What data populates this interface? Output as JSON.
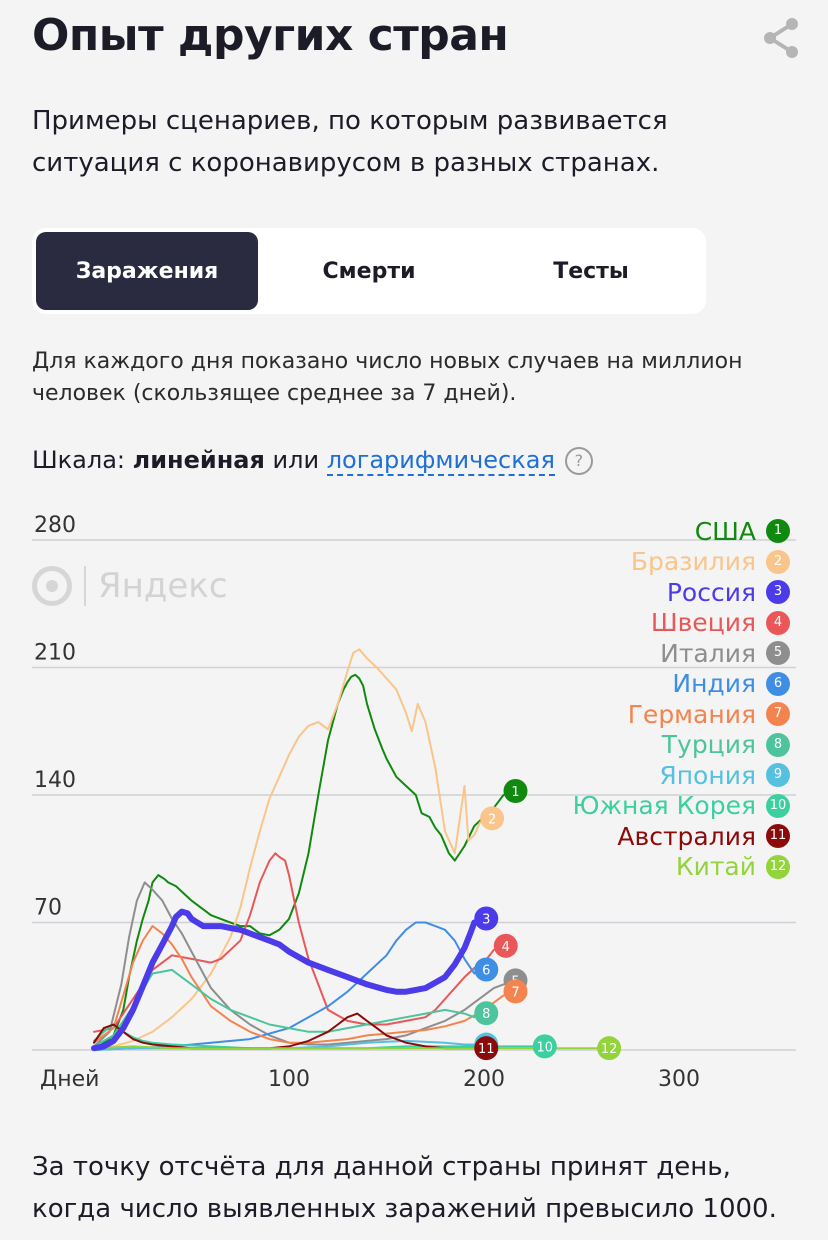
{
  "header": {
    "title": "Опыт других стран",
    "share_icon": "share-icon"
  },
  "subtitle": "Примеры сценариев, по которым развивается ситуация с коронавирусом в разных странах.",
  "tabs": [
    {
      "label": "Заражения",
      "active": true
    },
    {
      "label": "Смерти",
      "active": false
    },
    {
      "label": "Тесты",
      "active": false
    }
  ],
  "description": "Для каждого дня показано число новых случаев на миллион человек (скользящее среднее за 7 дней).",
  "scale": {
    "prefix": "Шкала: ",
    "linear": "линейная",
    "or": " или ",
    "log": "логарифмическая",
    "help": "?"
  },
  "watermark": "Яндекс",
  "footer": "За точку отсчёта для данной страны принят день, когда число выявленных заражений превысило 1000.",
  "chart_data": {
    "type": "line",
    "xlabel": "Дней",
    "x_ticks": [
      "100",
      "200",
      "300"
    ],
    "y_ticks": [
      "70",
      "140",
      "210",
      "280"
    ],
    "xlim": [
      0,
      360
    ],
    "ylim": [
      0,
      280
    ],
    "grid": true,
    "legend_position": "right",
    "series": [
      {
        "name": "США",
        "num": "1",
        "color": "#0f8a0f",
        "width": 2,
        "x": [
          0,
          5,
          10,
          15,
          18,
          22,
          25,
          28,
          30,
          33,
          36,
          38,
          42,
          46,
          50,
          55,
          60,
          65,
          70,
          75,
          80,
          85,
          90,
          95,
          100,
          105,
          110,
          115,
          120,
          125,
          128,
          130,
          132,
          134,
          136,
          138,
          140,
          144,
          148,
          150,
          155,
          160,
          165,
          168,
          172,
          175,
          178,
          180,
          182,
          185,
          190,
          195,
          200,
          205,
          210
        ],
        "y": [
          0,
          4,
          8,
          22,
          40,
          60,
          72,
          82,
          92,
          96,
          94,
          92,
          90,
          86,
          82,
          78,
          74,
          72,
          70,
          68,
          68,
          64,
          63,
          66,
          72,
          86,
          108,
          140,
          170,
          190,
          198,
          202,
          205,
          206,
          204,
          200,
          190,
          176,
          165,
          160,
          150,
          145,
          140,
          130,
          128,
          122,
          118,
          113,
          108,
          104,
          112,
          123,
          128,
          133,
          140
        ]
      },
      {
        "name": "Бразилия",
        "num": "2",
        "color": "#f9c58a",
        "width": 2,
        "x": [
          0,
          10,
          20,
          30,
          40,
          50,
          55,
          60,
          65,
          70,
          75,
          80,
          85,
          90,
          95,
          100,
          105,
          110,
          115,
          120,
          125,
          130,
          133,
          136,
          140,
          145,
          150,
          155,
          160,
          163,
          166,
          170,
          175,
          180,
          185,
          188,
          190,
          192,
          195,
          198
        ],
        "y": [
          0,
          2,
          5,
          10,
          18,
          28,
          35,
          42,
          52,
          62,
          78,
          100,
          120,
          138,
          150,
          162,
          172,
          178,
          180,
          176,
          190,
          208,
          218,
          220,
          215,
          210,
          204,
          198,
          185,
          175,
          190,
          180,
          155,
          120,
          108,
          130,
          145,
          115,
          118,
          125
        ]
      },
      {
        "name": "Россия",
        "num": "3",
        "color": "#4b3be8",
        "width": 6,
        "x": [
          0,
          5,
          10,
          15,
          20,
          25,
          30,
          35,
          40,
          42,
          45,
          48,
          50,
          53,
          56,
          60,
          65,
          70,
          75,
          80,
          85,
          90,
          95,
          100,
          110,
          120,
          130,
          140,
          150,
          155,
          160,
          165,
          170,
          175,
          180,
          185,
          190,
          193,
          195
        ],
        "y": [
          1,
          2,
          5,
          12,
          22,
          35,
          48,
          58,
          68,
          73,
          76,
          75,
          72,
          70,
          68,
          68,
          68,
          67,
          66,
          64,
          62,
          60,
          58,
          54,
          48,
          44,
          40,
          36,
          33,
          32,
          32,
          33,
          34,
          37,
          40,
          47,
          56,
          64,
          70
        ]
      },
      {
        "name": "Швеция",
        "num": "4",
        "color": "#e95758",
        "width": 2,
        "x": [
          0,
          10,
          20,
          30,
          40,
          50,
          60,
          65,
          70,
          75,
          80,
          85,
          90,
          93,
          95,
          98,
          100,
          105,
          110,
          115,
          120,
          130,
          140,
          150,
          160,
          170,
          175,
          180,
          185,
          190,
          195,
          200,
          205
        ],
        "y": [
          10,
          12,
          28,
          44,
          52,
          50,
          48,
          50,
          55,
          60,
          74,
          92,
          104,
          108,
          106,
          104,
          96,
          70,
          50,
          36,
          22,
          16,
          14,
          14,
          16,
          18,
          22,
          28,
          34,
          40,
          45,
          48,
          55
        ]
      },
      {
        "name": "Италия",
        "num": "5",
        "color": "#8e8e8e",
        "width": 2,
        "x": [
          0,
          8,
          14,
          18,
          22,
          26,
          30,
          35,
          40,
          45,
          50,
          55,
          60,
          70,
          80,
          90,
          100,
          110,
          120,
          130,
          140,
          150,
          160,
          170,
          180,
          190,
          195,
          200,
          205,
          210
        ],
        "y": [
          2,
          10,
          36,
          62,
          82,
          92,
          88,
          82,
          72,
          64,
          54,
          44,
          34,
          22,
          14,
          8,
          4,
          3,
          3,
          4,
          5,
          6,
          8,
          12,
          16,
          22,
          26,
          30,
          34,
          36
        ]
      },
      {
        "name": "Индия",
        "num": "6",
        "color": "#3f8ee5",
        "width": 2,
        "x": [
          0,
          20,
          40,
          60,
          80,
          100,
          110,
          120,
          130,
          140,
          150,
          155,
          160,
          165,
          170,
          175,
          180,
          185,
          190,
          195
        ],
        "y": [
          0,
          1,
          2,
          4,
          6,
          12,
          18,
          24,
          32,
          42,
          52,
          60,
          66,
          70,
          70,
          68,
          66,
          60,
          50,
          42
        ]
      },
      {
        "name": "Германия",
        "num": "7",
        "color": "#f38450",
        "width": 2,
        "x": [
          0,
          10,
          15,
          20,
          25,
          30,
          35,
          40,
          45,
          50,
          55,
          60,
          70,
          80,
          90,
          100,
          110,
          120,
          130,
          140,
          150,
          160,
          170,
          180,
          190,
          200,
          205,
          210
        ],
        "y": [
          4,
          12,
          30,
          48,
          60,
          68,
          64,
          58,
          50,
          40,
          32,
          24,
          16,
          10,
          6,
          4,
          4,
          5,
          6,
          8,
          9,
          10,
          11,
          13,
          16,
          22,
          26,
          30
        ]
      },
      {
        "name": "Турция",
        "num": "8",
        "color": "#4dc49c",
        "width": 2,
        "x": [
          0,
          10,
          20,
          30,
          40,
          50,
          60,
          70,
          80,
          90,
          100,
          110,
          120,
          130,
          140,
          150,
          160,
          170,
          180,
          190,
          195
        ],
        "y": [
          2,
          8,
          24,
          42,
          44,
          36,
          28,
          22,
          18,
          14,
          12,
          10,
          10,
          12,
          14,
          16,
          18,
          20,
          22,
          20,
          18
        ]
      },
      {
        "name": "Япония",
        "num": "9",
        "color": "#55c0e0",
        "width": 2,
        "x": [
          0,
          20,
          40,
          60,
          80,
          100,
          120,
          140,
          160,
          180,
          190,
          195
        ],
        "y": [
          0,
          1,
          1,
          1,
          1,
          1,
          2,
          4,
          5,
          4,
          3,
          3
        ]
      },
      {
        "name": "Южная Корея",
        "num": "10",
        "color": "#3ccfa0",
        "width": 2,
        "x": [
          0,
          5,
          10,
          15,
          20,
          25,
          30,
          40,
          60,
          80,
          100,
          120,
          140,
          160,
          180,
          200,
          220,
          225
        ],
        "y": [
          5,
          10,
          14,
          10,
          7,
          5,
          4,
          3,
          2,
          1,
          1,
          1,
          1,
          2,
          2,
          2,
          2,
          2
        ]
      },
      {
        "name": "Австралия",
        "num": "11",
        "color": "#8b0b0b",
        "width": 2,
        "x": [
          0,
          5,
          10,
          15,
          20,
          25,
          30,
          40,
          50,
          60,
          70,
          80,
          90,
          100,
          110,
          120,
          125,
          130,
          135,
          140,
          145,
          150,
          160,
          170,
          180,
          190,
          195
        ],
        "y": [
          4,
          12,
          14,
          10,
          6,
          4,
          3,
          2,
          1,
          1,
          1,
          1,
          1,
          2,
          5,
          10,
          14,
          18,
          20,
          16,
          12,
          8,
          4,
          2,
          1,
          1,
          1
        ]
      },
      {
        "name": "Китай",
        "num": "12",
        "color": "#93d33b",
        "width": 2,
        "x": [
          0,
          20,
          40,
          60,
          80,
          100,
          150,
          200,
          250,
          258
        ],
        "y": [
          1,
          2,
          1,
          1,
          1,
          1,
          1,
          1,
          1,
          1
        ]
      }
    ]
  }
}
